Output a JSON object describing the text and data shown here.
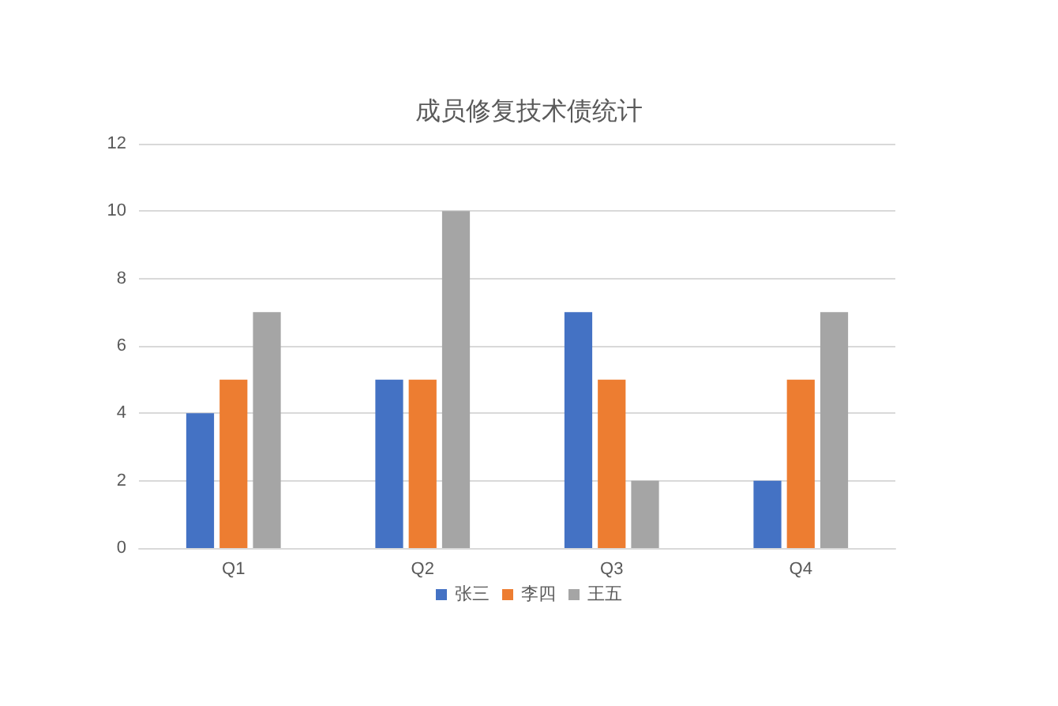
{
  "chart_data": {
    "type": "bar",
    "title": "成员修复技术债统计",
    "categories": [
      "Q1",
      "Q2",
      "Q3",
      "Q4"
    ],
    "series": [
      {
        "name": "张三",
        "color": "#4472c4",
        "values": [
          4,
          5,
          7,
          2
        ]
      },
      {
        "name": "李四",
        "color": "#ed7d31",
        "values": [
          5,
          5,
          5,
          5
        ]
      },
      {
        "name": "王五",
        "color": "#a5a5a5",
        "values": [
          7,
          10,
          2,
          7
        ]
      }
    ],
    "ylim": [
      0,
      12
    ],
    "yticks": [
      0,
      2,
      4,
      6,
      8,
      10,
      12
    ],
    "grid": "y",
    "legend": "bottom"
  }
}
